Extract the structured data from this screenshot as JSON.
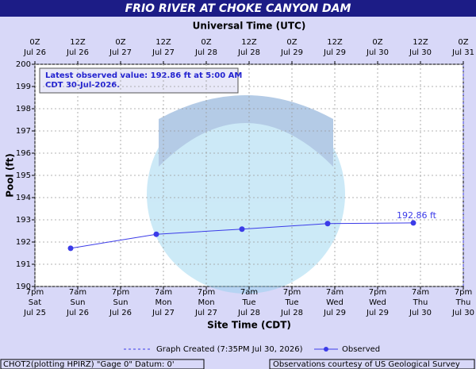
{
  "chart_data": {
    "type": "line",
    "title": "FRIO RIVER AT CHOKE CANYON DAM",
    "top_axis_label": "Universal Time (UTC)",
    "x_axis_label": "Site Time (CDT)",
    "y_axis_label": "Pool (ft)",
    "annotation": [
      "Latest observed value: 192.86 ft at 5:00 AM",
      "CDT 30-Jul-2026."
    ],
    "x": [
      "2026-07-26T05:00",
      "2026-07-27T05:00",
      "2026-07-28T05:00",
      "2026-07-29T05:00",
      "2026-07-30T05:00"
    ],
    "series": [
      {
        "name": "Observed",
        "color": "#3b3be8",
        "values": [
          191.72,
          192.35,
          192.58,
          192.83,
          192.86
        ],
        "value_labels": [
          null,
          null,
          null,
          null,
          "192.86 ft"
        ]
      }
    ],
    "legend_extra": "Graph Created (7:35PM Jul 30, 2026)",
    "footer_left": "CHOT2(plotting HPIRZ) \"Gage 0\" Datum: 0'",
    "footer_right": "Observations courtesy of US Geological Survey",
    "xlim": [
      "2026-07-25T19:00",
      "2026-07-30T19:00"
    ],
    "xticks": [
      {
        "value": "2026-07-25T19:00",
        "label": [
          "7pm",
          "Sat",
          "Jul 25"
        ]
      },
      {
        "value": "2026-07-26T07:00",
        "label": [
          "7am",
          "Sun",
          "Jul 26"
        ]
      },
      {
        "value": "2026-07-26T19:00",
        "label": [
          "7pm",
          "Sun",
          "Jul 26"
        ]
      },
      {
        "value": "2026-07-27T07:00",
        "label": [
          "7am",
          "Mon",
          "Jul 27"
        ]
      },
      {
        "value": "2026-07-27T19:00",
        "label": [
          "7pm",
          "Mon",
          "Jul 27"
        ]
      },
      {
        "value": "2026-07-28T07:00",
        "label": [
          "7am",
          "Tue",
          "Jul 28"
        ]
      },
      {
        "value": "2026-07-28T19:00",
        "label": [
          "7pm",
          "Tue",
          "Jul 28"
        ]
      },
      {
        "value": "2026-07-29T07:00",
        "label": [
          "7am",
          "Wed",
          "Jul 29"
        ]
      },
      {
        "value": "2026-07-29T19:00",
        "label": [
          "7pm",
          "Wed",
          "Jul 29"
        ]
      },
      {
        "value": "2026-07-30T07:00",
        "label": [
          "7am",
          "Thu",
          "Jul 30"
        ]
      },
      {
        "value": "2026-07-30T19:00",
        "label": [
          "7pm",
          "Thu",
          "Jul 30"
        ]
      }
    ],
    "top_xticks": [
      {
        "value": "2026-07-25T19:00",
        "label": [
          "0Z",
          "Jul 26"
        ]
      },
      {
        "value": "2026-07-26T07:00",
        "label": [
          "12Z",
          "Jul 26"
        ]
      },
      {
        "value": "2026-07-26T19:00",
        "label": [
          "0Z",
          "Jul 27"
        ]
      },
      {
        "value": "2026-07-27T07:00",
        "label": [
          "12Z",
          "Jul 27"
        ]
      },
      {
        "value": "2026-07-27T19:00",
        "label": [
          "0Z",
          "Jul 28"
        ]
      },
      {
        "value": "2026-07-28T07:00",
        "label": [
          "12Z",
          "Jul 28"
        ]
      },
      {
        "value": "2026-07-28T19:00",
        "label": [
          "0Z",
          "Jul 29"
        ]
      },
      {
        "value": "2026-07-29T07:00",
        "label": [
          "12Z",
          "Jul 29"
        ]
      },
      {
        "value": "2026-07-29T19:00",
        "label": [
          "0Z",
          "Jul 30"
        ]
      },
      {
        "value": "2026-07-30T07:00",
        "label": [
          "12Z",
          "Jul 30"
        ]
      },
      {
        "value": "2026-07-30T19:00",
        "label": [
          "0Z",
          "Jul 31"
        ]
      }
    ],
    "ylim": [
      190,
      200
    ],
    "yticks": [
      190,
      191,
      192,
      193,
      194,
      195,
      196,
      197,
      198,
      199,
      200
    ],
    "grid": true
  }
}
